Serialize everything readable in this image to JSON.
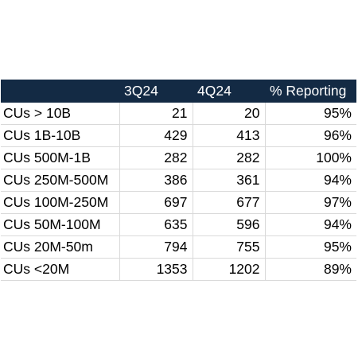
{
  "table": {
    "headers": [
      "",
      "3Q24",
      "4Q24",
      "% Reporting"
    ],
    "rows": [
      {
        "label": "CUs > 10B",
        "q3": "21",
        "q4": "20",
        "pct": "95%"
      },
      {
        "label": "CUs 1B-10B",
        "q3": "429",
        "q4": "413",
        "pct": "96%"
      },
      {
        "label": "CUs 500M-1B",
        "q3": "282",
        "q4": "282",
        "pct": "100%"
      },
      {
        "label": "CUs 250M-500M",
        "q3": "386",
        "q4": "361",
        "pct": "94%"
      },
      {
        "label": "CUs 100M-250M",
        "q3": "697",
        "q4": "677",
        "pct": "97%"
      },
      {
        "label": "CUs 50M-100M",
        "q3": "635",
        "q4": "596",
        "pct": "94%"
      },
      {
        "label": "CUs 20M-50m",
        "q3": "794",
        "q4": "755",
        "pct": "95%"
      },
      {
        "label": "CUs <20M",
        "q3": "1353",
        "q4": "1202",
        "pct": "89%"
      }
    ]
  },
  "colors": {
    "header_bg": "#132a44",
    "header_text": "#ffffff",
    "grid_line": "#d9d9d9"
  }
}
